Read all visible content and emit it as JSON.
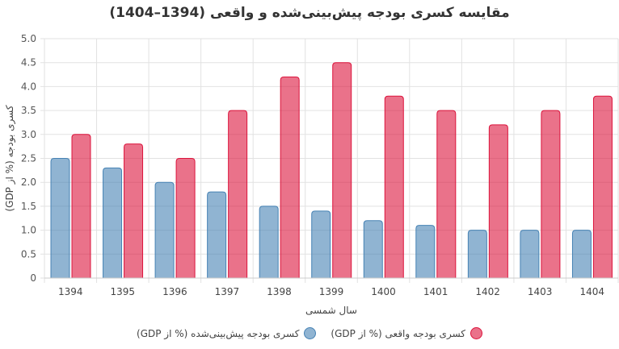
{
  "chart_data": {
    "type": "bar",
    "title": "مقایسه کسری بودجه پیش‌بینی‌شده و واقعی (1394–1404)",
    "xlabel": "سال شمسی",
    "ylabel": "کسری بودجه (% از GDP)",
    "ylim": [
      0,
      5
    ],
    "yticks": [
      "0",
      "0.5",
      "1.0",
      "1.5",
      "2.0",
      "2.5",
      "3.0",
      "3.5",
      "4.0",
      "4.5",
      "5.0"
    ],
    "grid": true,
    "legend": "bottom",
    "categories": [
      "1394",
      "1395",
      "1396",
      "1397",
      "1398",
      "1399",
      "1400",
      "1401",
      "1402",
      "1403",
      "1404"
    ],
    "series": [
      {
        "name": "کسری بودجه پیش‌بینی‌شده (% از GDP)",
        "color": "#4682b4",
        "values": [
          2.5,
          2.3,
          2.0,
          1.8,
          1.5,
          1.4,
          1.2,
          1.1,
          1.0,
          1.0,
          1.0
        ]
      },
      {
        "name": "کسری بودجه واقعی (% از GDP)",
        "color": "#dc143c",
        "values": [
          3.0,
          2.8,
          2.5,
          3.5,
          4.2,
          4.5,
          3.8,
          3.5,
          3.2,
          3.5,
          3.8
        ]
      }
    ]
  }
}
